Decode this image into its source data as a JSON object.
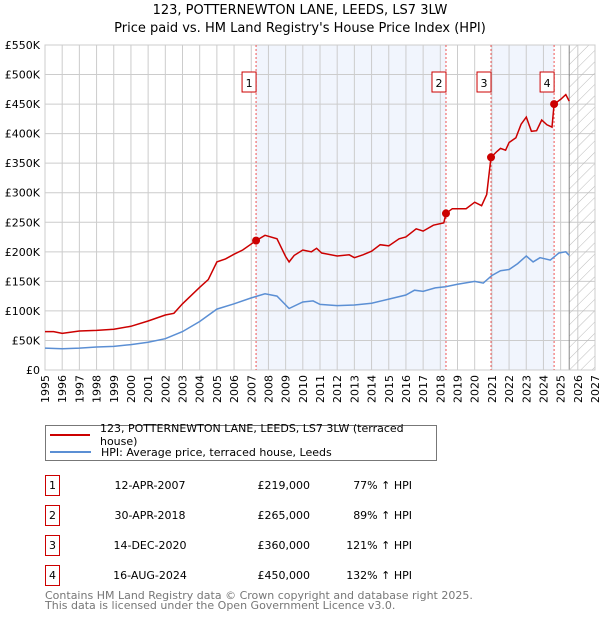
{
  "chart_data": {
    "type": "line",
    "title": "123, POTTERNEWTON LANE, LEEDS, LS7 3LW",
    "subtitle": "Price paid vs. HM Land Registry's House Price Index (HPI)",
    "xlim": [
      1995,
      2027
    ],
    "ylim": [
      0,
      550000
    ],
    "x_ticks": [
      "1995",
      "1996",
      "1997",
      "1998",
      "1999",
      "2000",
      "2001",
      "2002",
      "2003",
      "2004",
      "2005",
      "2006",
      "2007",
      "2008",
      "2009",
      "2010",
      "2011",
      "2012",
      "2013",
      "2014",
      "2015",
      "2016",
      "2017",
      "2018",
      "2019",
      "2020",
      "2021",
      "2022",
      "2023",
      "2024",
      "2025",
      "2026",
      "2027"
    ],
    "y_ticks": [
      {
        "v": 0,
        "label": "£0"
      },
      {
        "v": 50000,
        "label": "£50K"
      },
      {
        "v": 100000,
        "label": "£100K"
      },
      {
        "v": 150000,
        "label": "£150K"
      },
      {
        "v": 200000,
        "label": "£200K"
      },
      {
        "v": 250000,
        "label": "£250K"
      },
      {
        "v": 300000,
        "label": "£300K"
      },
      {
        "v": 350000,
        "label": "£350K"
      },
      {
        "v": 400000,
        "label": "£400K"
      },
      {
        "v": 450000,
        "label": "£450K"
      },
      {
        "v": 500000,
        "label": "£500K"
      },
      {
        "v": 550000,
        "label": "£550K"
      }
    ],
    "grid": true,
    "forecast_hatch_from": 2025.5,
    "series": [
      {
        "name": "123, POTTERNEWTON LANE, LEEDS, LS7 3LW (terraced house)",
        "color": "#cc0000",
        "x": [
          1995,
          1995.5,
          1996,
          1997,
          1998,
          1999,
          2000,
          2001,
          2002,
          2002.5,
          2003,
          2004,
          2004.5,
          2005,
          2005.5,
          2006,
          2006.5,
          2007.28,
          2007.8,
          2008.5,
          2009,
          2009.2,
          2009.5,
          2010,
          2010.5,
          2010.8,
          2011.1,
          2012,
          2012.7,
          2013,
          2013.5,
          2014,
          2014.5,
          2015,
          2015.6,
          2016,
          2016.6,
          2017,
          2017.6,
          2018.2,
          2018.33,
          2018.7,
          2019.5,
          2020,
          2020.4,
          2020.7,
          2020.95,
          2021.3,
          2021.5,
          2021.8,
          2022,
          2022.4,
          2022.7,
          2023,
          2023.3,
          2023.6,
          2023.9,
          2024.2,
          2024.5,
          2024.62,
          2025,
          2025.3,
          2025.5
        ],
        "y": [
          65000,
          65000,
          62000,
          66000,
          67000,
          69000,
          74000,
          83000,
          93000,
          96000,
          112000,
          140000,
          153000,
          183000,
          188000,
          196000,
          203000,
          219000,
          228000,
          222000,
          192000,
          183000,
          194000,
          203000,
          200000,
          206000,
          198000,
          193000,
          195000,
          190000,
          195000,
          201000,
          212000,
          210000,
          222000,
          225000,
          239000,
          235000,
          245000,
          249000,
          265000,
          273000,
          273000,
          284000,
          278000,
          297000,
          360000,
          370000,
          375000,
          372000,
          385000,
          393000,
          416000,
          428000,
          404000,
          405000,
          423000,
          415000,
          411000,
          450000,
          458000,
          466000,
          455000
        ]
      },
      {
        "name": "HPI: Average price, terraced house, Leeds",
        "color": "#5b8fd4",
        "x": [
          1995,
          1996,
          1997,
          1998,
          1999,
          2000,
          2001,
          2002,
          2003,
          2004,
          2005,
          2006,
          2007,
          2007.8,
          2008.5,
          2009.2,
          2010,
          2010.6,
          2011,
          2012,
          2013,
          2014,
          2015,
          2016,
          2016.5,
          2017,
          2017.7,
          2018.3,
          2019,
          2020,
          2020.5,
          2021,
          2021.5,
          2022,
          2022.5,
          2023,
          2023.4,
          2023.8,
          2024.4,
          2024.9,
          2025.3,
          2025.5
        ],
        "y": [
          37000,
          36000,
          37000,
          39000,
          40000,
          43000,
          47000,
          53000,
          65000,
          82000,
          103000,
          112000,
          122000,
          129000,
          125000,
          104000,
          115000,
          117000,
          111000,
          109000,
          110000,
          113000,
          120000,
          127000,
          135000,
          133000,
          139000,
          141000,
          145000,
          150000,
          147000,
          160000,
          168000,
          170000,
          180000,
          193000,
          183000,
          190000,
          186000,
          198000,
          200000,
          194000
        ]
      }
    ],
    "sales": [
      {
        "id": "1",
        "x": 2007.28,
        "date": "12-APR-2007",
        "price_value": 219000,
        "price": "£219,000",
        "hpi": "77% ↑ HPI"
      },
      {
        "id": "2",
        "x": 2018.33,
        "date": "30-APR-2018",
        "price_value": 265000,
        "price": "£265,000",
        "hpi": "89% ↑ HPI"
      },
      {
        "id": "3",
        "x": 2020.95,
        "date": "14-DEC-2020",
        "price_value": 360000,
        "price": "£360,000",
        "hpi": "121% ↑ HPI"
      },
      {
        "id": "4",
        "x": 2024.62,
        "date": "16-AUG-2024",
        "price_value": 450000,
        "price": "£450,000",
        "hpi": "132% ↑ HPI"
      }
    ]
  },
  "footer": {
    "line1": "Contains HM Land Registry data © Crown copyright and database right 2025.",
    "line2": "This data is licensed under the Open Government Licence v3.0."
  }
}
